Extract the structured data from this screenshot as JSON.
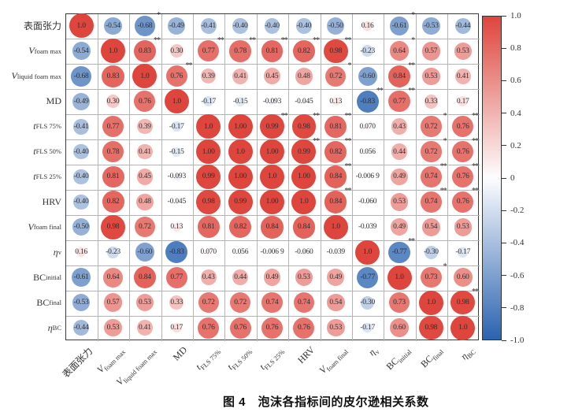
{
  "figure": {
    "caption": "图 4　泡沫各指标间的皮尔逊相关系数"
  },
  "colorbar": {
    "ticks": [
      "1.0",
      "0.8",
      "0.6",
      "0.4",
      "0.2",
      "0",
      "-0.2",
      "-0.4",
      "-0.6",
      "-0.8",
      "-1.0"
    ],
    "max_color": "#DE453C",
    "mid_color": "#FDFDFF",
    "min_color": "#2A63B0"
  },
  "chart_data": {
    "type": "heatmap",
    "title": "图 4 泡沫各指标间的皮尔逊相关系数",
    "legend_position": "right-colorbar",
    "colorbar_range": [
      -1,
      1
    ],
    "colorbar_ticks": [
      1.0,
      0.8,
      0.6,
      0.4,
      0.2,
      0,
      -0.2,
      -0.4,
      -0.6,
      -0.8,
      -1.0
    ],
    "variables": [
      {
        "main": "表面张力",
        "italic": false,
        "sub": "",
        "text": "表面张力"
      },
      {
        "main": "V",
        "italic": true,
        "sub": "foam max",
        "text": "V foam max"
      },
      {
        "main": "V",
        "italic": true,
        "sub": "liquid foam max",
        "text": "V liquid foam max"
      },
      {
        "main": "MD",
        "italic": false,
        "sub": "",
        "text": "MD"
      },
      {
        "main": "t",
        "italic": true,
        "sub": "FLS 75%",
        "text": "t FLS 75%"
      },
      {
        "main": "t",
        "italic": true,
        "sub": "FLS 50%",
        "text": "t FLS 50%"
      },
      {
        "main": "t",
        "italic": true,
        "sub": "FLS 25%",
        "text": "t FLS 25%"
      },
      {
        "main": "HRV",
        "italic": false,
        "sub": "",
        "text": "HRV"
      },
      {
        "main": "V",
        "italic": true,
        "sub": "foam final",
        "text": "V foam final"
      },
      {
        "main": "η",
        "italic": true,
        "sub": "v",
        "text": "η v"
      },
      {
        "main": "BC",
        "italic": false,
        "sub": "initial",
        "text": "BC initial"
      },
      {
        "main": "BC",
        "italic": false,
        "sub": "final",
        "text": "BC final"
      },
      {
        "main": "η",
        "italic": true,
        "sub": "BC",
        "text": "η BC"
      }
    ],
    "matrix": [
      [
        "1.0",
        "-0.54",
        "-0.68",
        "-0.49",
        "-0.41",
        "-0.40",
        "-0.40",
        "-0.40",
        "-0.50",
        "0.16",
        "-0.61",
        "-0.53",
        "-0.44"
      ],
      [
        "-0.54",
        "1.0",
        "0.83",
        "0.30",
        "0.77",
        "0.78",
        "0.81",
        "0.82",
        "0.98",
        "-0.23",
        "0.64",
        "0.57",
        "0.53"
      ],
      [
        "-0.68",
        "0.83",
        "1.0",
        "0.76",
        "0.39",
        "0.41",
        "0.45",
        "0.48",
        "0.72",
        "-0.60",
        "0.84",
        "0.53",
        "0.41"
      ],
      [
        "-0.49",
        "0.30",
        "0.76",
        "1.0",
        "-0.17",
        "-0.15",
        "-0.093",
        "-0.045",
        "0.13",
        "-0.83",
        "0.77",
        "0.33",
        "0.17"
      ],
      [
        "-0.41",
        "0.77",
        "0.39",
        "-0.17",
        "1.0",
        "1.00",
        "0.99",
        "0.98",
        "0.81",
        "0.070",
        "0.43",
        "0.72",
        "0.76"
      ],
      [
        "-0.40",
        "0.78",
        "0.41",
        "-0.15",
        "1.00",
        "1.0",
        "1.00",
        "0.99",
        "0.82",
        "0.056",
        "0.44",
        "0.72",
        "0.76"
      ],
      [
        "-0.40",
        "0.81",
        "0.45",
        "-0.093",
        "0.99",
        "1.00",
        "1.0",
        "1.00",
        "0.84",
        "-0.006 9",
        "0.49",
        "0.74",
        "0.76"
      ],
      [
        "-0.40",
        "0.82",
        "0.48",
        "-0.045",
        "0.98",
        "0.99",
        "1.00",
        "1.0",
        "0.84",
        "-0.060",
        "0.53",
        "0.74",
        "0.76"
      ],
      [
        "-0.50",
        "0.98",
        "0.72",
        "0.13",
        "0.81",
        "0.82",
        "0.84",
        "0.84",
        "1.0",
        "-0.039",
        "0.49",
        "0.54",
        "0.53"
      ],
      [
        "0.16",
        "-0.23",
        "-0.60",
        "-0.83",
        "0.070",
        "0.056",
        "-0.006 9",
        "-0.060",
        "-0.039",
        "1.0",
        "-0.77",
        "-0.30",
        "-0.17"
      ],
      [
        "-0.61",
        "0.64",
        "0.84",
        "0.77",
        "0.43",
        "0.44",
        "0.49",
        "0.53",
        "0.49",
        "-0.77",
        "1.0",
        "0.73",
        "0.60"
      ],
      [
        "-0.53",
        "0.57",
        "0.53",
        "0.33",
        "0.72",
        "0.72",
        "0.74",
        "0.74",
        "0.54",
        "-0.30",
        "0.73",
        "1.0",
        "0.98"
      ],
      [
        "-0.44",
        "0.53",
        "0.41",
        "0.17",
        "0.76",
        "0.76",
        "0.76",
        "0.76",
        "0.53",
        "-0.17",
        "0.60",
        "0.98",
        "1.0"
      ]
    ],
    "significance": [
      [
        "",
        "",
        "*",
        "",
        "",
        "",
        "",
        "",
        "",
        "",
        "*",
        "",
        ""
      ],
      [
        "",
        "",
        "**",
        "",
        "**",
        "**",
        "**",
        "**",
        "**",
        "",
        "*",
        "",
        ""
      ],
      [
        "",
        "",
        "",
        "**",
        "",
        "",
        "",
        "",
        "*",
        "",
        "**",
        "",
        ""
      ],
      [
        "",
        "",
        "",
        "",
        "",
        "",
        "",
        "",
        "",
        "**",
        "**",
        "",
        ""
      ],
      [
        "",
        "",
        "",
        "",
        "",
        "",
        "**",
        "**",
        "**",
        "",
        "",
        "*",
        "**"
      ],
      [
        "",
        "",
        "",
        "",
        "",
        "",
        "",
        "**",
        "**",
        "",
        "",
        "*",
        "**"
      ],
      [
        "",
        "",
        "",
        "",
        "",
        "",
        "",
        "",
        "**",
        "",
        "",
        "**",
        "**"
      ],
      [
        "",
        "",
        "",
        "",
        "",
        "",
        "",
        "",
        "**",
        "",
        "",
        "**",
        "**"
      ],
      [
        "",
        "",
        "",
        "",
        "",
        "",
        "",
        "",
        "",
        "",
        "",
        "",
        ""
      ],
      [
        "",
        "",
        "",
        "",
        "",
        "",
        "",
        "",
        "",
        "",
        "**",
        "",
        ""
      ],
      [
        "",
        "",
        "",
        "",
        "",
        "",
        "",
        "",
        "",
        "",
        "",
        "*",
        ""
      ],
      [
        "",
        "",
        "",
        "",
        "",
        "",
        "",
        "",
        "",
        "",
        "",
        "",
        "**"
      ],
      [
        "",
        "",
        "",
        "",
        "",
        "",
        "",
        "",
        "",
        "",
        "",
        "",
        ""
      ]
    ]
  }
}
